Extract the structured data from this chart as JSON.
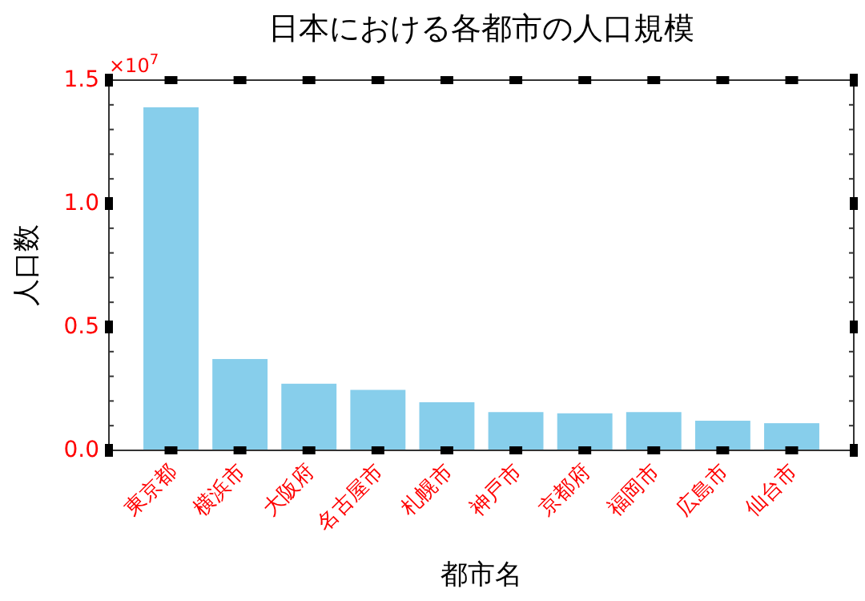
{
  "chart_data": {
    "type": "bar",
    "title": "日本における各都市の人口規模",
    "xlabel": "都市名",
    "ylabel": "人口数",
    "categories": [
      "東京都",
      "横浜市",
      "大阪府",
      "名古屋市",
      "札幌市",
      "神戸市",
      "京都府",
      "福岡市",
      "広島市",
      "仙台市"
    ],
    "values": [
      1.39,
      0.37,
      0.27,
      0.245,
      0.195,
      0.155,
      0.15,
      0.155,
      0.12,
      0.11
    ],
    "color": "#87ceeb",
    "ylim": [
      0,
      1.5
    ],
    "yticks": [
      {
        "value": 0,
        "label": "0.0"
      },
      {
        "value": 0.5,
        "label": "0.5"
      },
      {
        "value": 1,
        "label": "1.0"
      },
      {
        "value": 1.5,
        "label": "1.5"
      }
    ],
    "annotations": [
      "×10$^{7}$"
    ]
  }
}
